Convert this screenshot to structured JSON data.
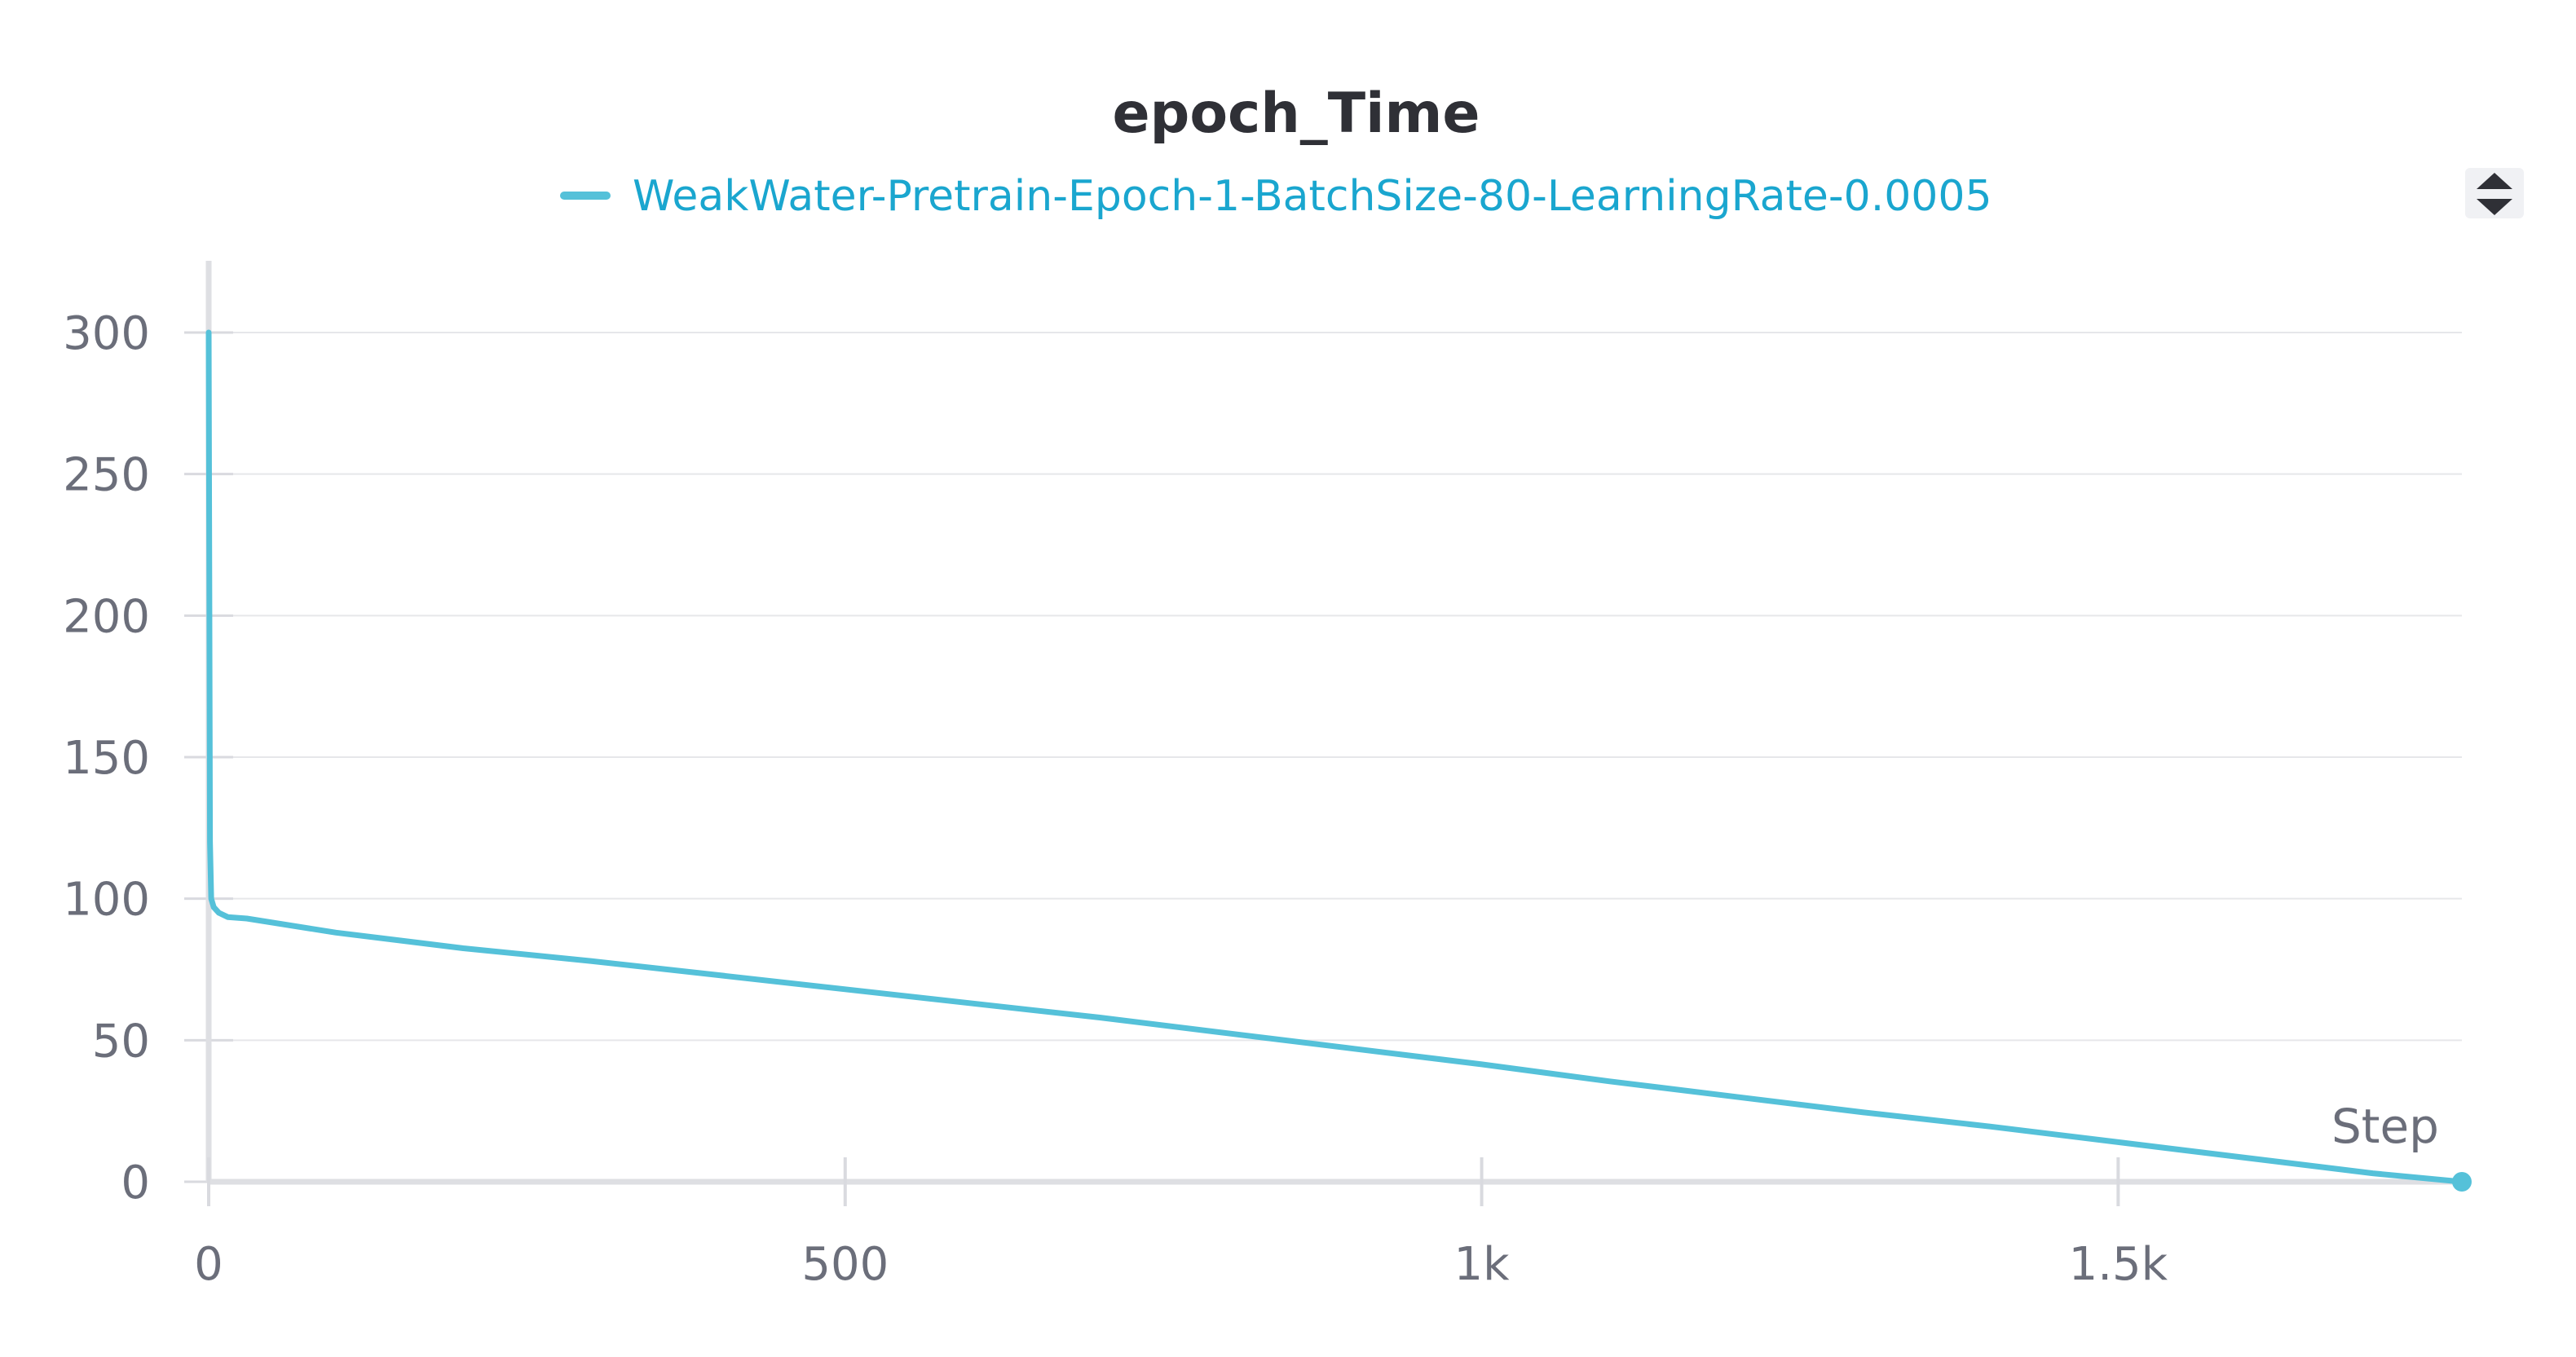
{
  "chart_data": {
    "type": "line",
    "title": "epoch_Time",
    "xlabel": "Step",
    "ylabel": "",
    "xlim": [
      0,
      1770
    ],
    "ylim": [
      0,
      300
    ],
    "x_ticks": [
      {
        "value": 0,
        "label": "0"
      },
      {
        "value": 500,
        "label": "500"
      },
      {
        "value": 1000,
        "label": "1k"
      },
      {
        "value": 1500,
        "label": "1.5k"
      }
    ],
    "y_ticks": [
      {
        "value": 0,
        "label": "0"
      },
      {
        "value": 50,
        "label": "50"
      },
      {
        "value": 100,
        "label": "100"
      },
      {
        "value": 150,
        "label": "150"
      },
      {
        "value": 200,
        "label": "200"
      },
      {
        "value": 250,
        "label": "250"
      },
      {
        "value": 300,
        "label": "300"
      }
    ],
    "grid": true,
    "legend_position": "top-center",
    "series": [
      {
        "name": "WeakWater-Pretrain-Epoch-1-BatchSize-80-LearningRate-0.0005",
        "color": "#55c1d9",
        "x": [
          0,
          1,
          2,
          4,
          8,
          15,
          30,
          100,
          200,
          300,
          400,
          500,
          600,
          700,
          800,
          900,
          1000,
          1100,
          1200,
          1300,
          1400,
          1500,
          1600,
          1700,
          1770
        ],
        "values": [
          300,
          120,
          100,
          97,
          95,
          93.5,
          93,
          88,
          82.5,
          78,
          73,
          68,
          63,
          58,
          52.5,
          47,
          41.5,
          35.5,
          30,
          24.5,
          19.5,
          14,
          8.5,
          3,
          0
        ]
      }
    ]
  },
  "legend_toggle_icon": "sort-up-down-icon"
}
